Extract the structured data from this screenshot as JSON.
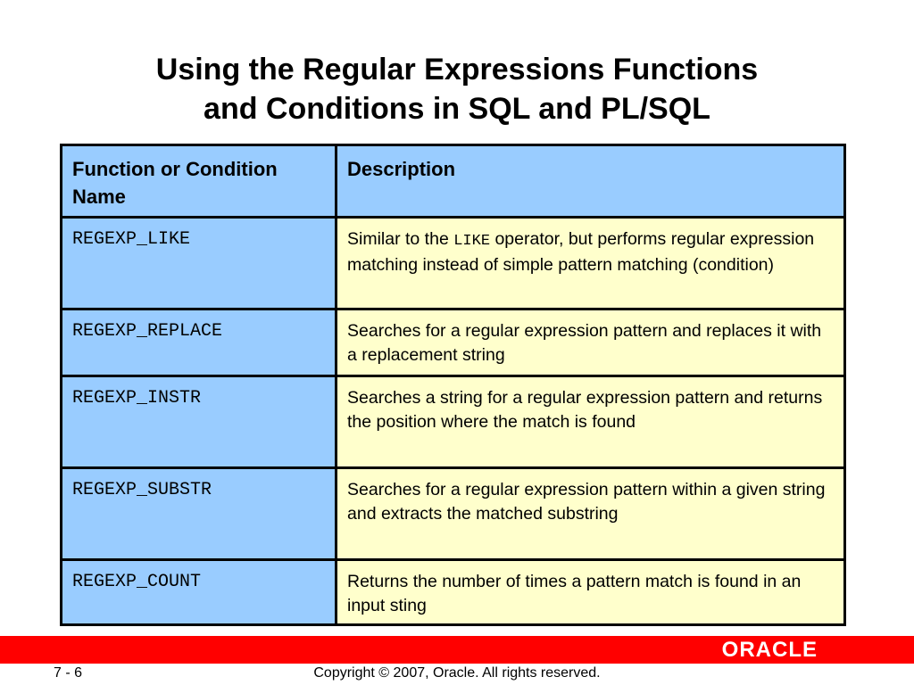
{
  "title": {
    "line1": "Using the Regular Expressions Functions",
    "line2": "and Conditions in SQL and PL/SQL"
  },
  "table": {
    "headers": [
      "Function or Condition Name",
      "Description"
    ],
    "rows": [
      {
        "name": "REGEXP_LIKE",
        "desc_pre": "Similar to the ",
        "desc_code": "LIKE",
        "desc_post": " operator, but performs regular expression matching instead of simple pattern matching (condition)"
      },
      {
        "name": "REGEXP_REPLACE",
        "desc": "Searches for a regular expression pattern and replaces it with a replacement string"
      },
      {
        "name": "REGEXP_INSTR",
        "desc": "Searches a string for a regular expression pattern and returns the position where the match is found"
      },
      {
        "name": "REGEXP_SUBSTR",
        "desc": "Searches for a regular expression pattern within a given string and extracts the matched substring"
      },
      {
        "name": "REGEXP_COUNT",
        "desc": "Returns the number of times a pattern match is found in an input sting"
      }
    ]
  },
  "footer": {
    "logo": "ORACLE",
    "page": "7 - 6",
    "copyright": "Copyright © 2007, Oracle. All rights reserved."
  },
  "colors": {
    "name_bg": "#99ccff",
    "desc_bg": "#ffffcc",
    "bar": "#ff0000"
  }
}
